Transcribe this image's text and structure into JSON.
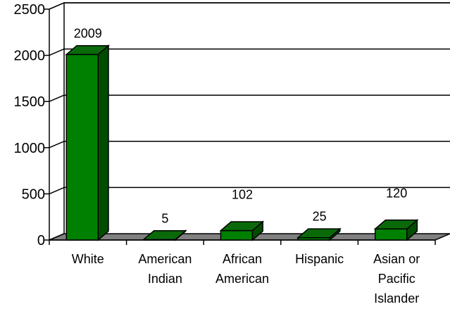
{
  "chart_data": {
    "type": "bar",
    "categories": [
      [
        "White"
      ],
      [
        "American",
        "Indian"
      ],
      [
        "African",
        "American"
      ],
      [
        "Hispanic"
      ],
      [
        "Asian or",
        "Pacific",
        "Islander"
      ]
    ],
    "values": [
      2009,
      5,
      102,
      25,
      120
    ],
    "data_labels": [
      "2009",
      "5",
      "102",
      "25",
      "120"
    ],
    "title": "",
    "xlabel": "",
    "ylabel": "",
    "ylim": [
      0,
      2500
    ],
    "yticks": [
      0,
      500,
      1000,
      1500,
      2000,
      2500
    ],
    "grid": true,
    "legend": "none",
    "colors": {
      "bar_front": "#008000",
      "bar_top": "#0a6a0a",
      "bar_side": "#004d00",
      "floor": "#808080",
      "grid": "#000000",
      "text": "#000000"
    }
  }
}
